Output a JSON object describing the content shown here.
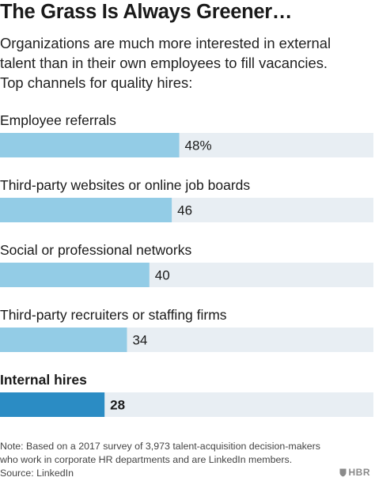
{
  "header": {
    "title": "The Grass Is Always Greener…",
    "subtitle_lines": [
      "Organizations are much more interested in external",
      "talent than in their own employees to fill vacancies.",
      "Top channels for quality hires:"
    ]
  },
  "chart_data": {
    "type": "bar",
    "orientation": "horizontal",
    "categories": [
      "Employee referrals",
      "Third-party websites or online job boards",
      "Social or professional networks",
      "Third-party recruiters or staffing firms",
      "Internal hires"
    ],
    "values": [
      48,
      46,
      40,
      34,
      28
    ],
    "value_labels": [
      "48%",
      "46",
      "40",
      "34",
      "28"
    ],
    "highlighted": [
      false,
      false,
      false,
      false,
      true
    ],
    "xlim": [
      0,
      100
    ],
    "colors": {
      "bar": "#93cce6",
      "bar_highlight": "#2b8cc4",
      "track": "#e8eef3"
    }
  },
  "footer": {
    "note_lines": [
      "Note: Based on a 2017 survey of 3,973 talent-acquisition decision-makers",
      "who work in corporate HR departments and are LinkedIn members.",
      "Source: LinkedIn"
    ],
    "logo_text": "HBR",
    "logo_icon": "shield-icon"
  }
}
